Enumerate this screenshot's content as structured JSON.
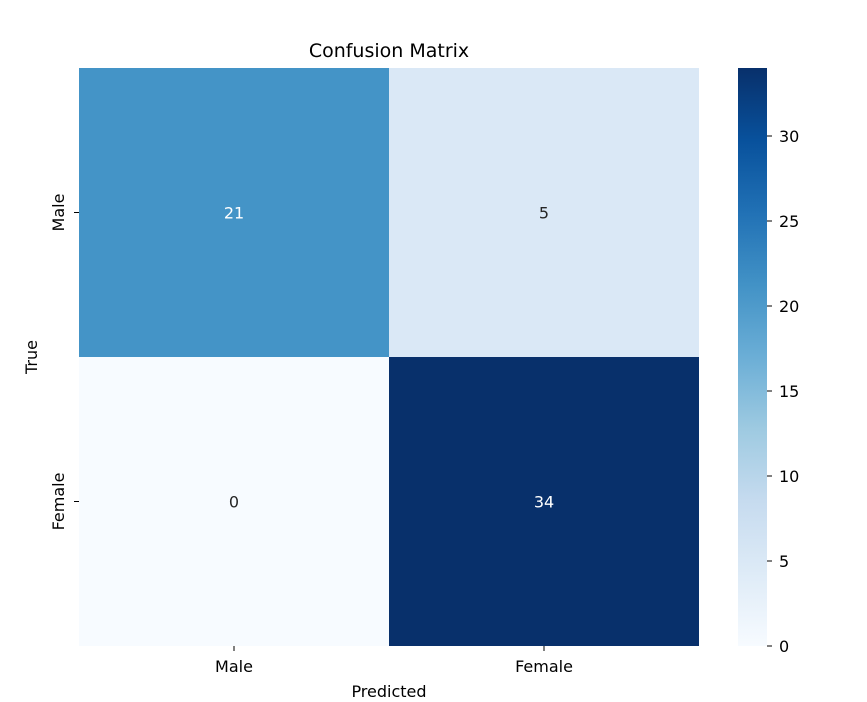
{
  "chart_data": {
    "type": "heatmap",
    "title": "Confusion Matrix",
    "xlabel": "Predicted",
    "ylabel": "True",
    "x_categories": [
      "Male",
      "Female"
    ],
    "y_categories": [
      "Male",
      "Female"
    ],
    "values": [
      [
        21,
        5
      ],
      [
        0,
        34
      ]
    ],
    "colormap": "Blues",
    "colorbar": {
      "range": [
        0,
        34
      ],
      "ticks": [
        0,
        5,
        10,
        15,
        20,
        25,
        30
      ],
      "tick_labels": [
        "0",
        "5",
        "10",
        "15",
        "20",
        "25",
        "30"
      ]
    },
    "grid": false
  }
}
